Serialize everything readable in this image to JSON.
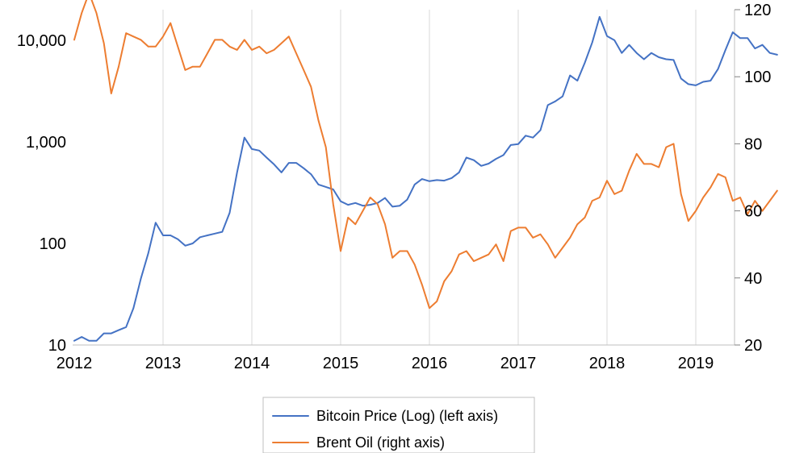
{
  "chart_data": {
    "type": "line",
    "title": "",
    "xlabel": "",
    "grid": "vertical gridlines at each year",
    "legend_position": "bottom",
    "x_ticks": [
      "2012",
      "2013",
      "2014",
      "2015",
      "2016",
      "2017",
      "2018",
      "2019"
    ],
    "x_range": [
      "2012-01",
      "2019-12"
    ],
    "y_left": {
      "scale": "log",
      "range": [
        10,
        20000
      ],
      "ticks": [
        10,
        100,
        1000,
        10000
      ],
      "tick_labels": [
        "10",
        "100",
        "1,000",
        "10,000"
      ]
    },
    "y_right": {
      "scale": "linear",
      "range": [
        20,
        120
      ],
      "ticks": [
        20,
        40,
        60,
        80,
        100,
        120
      ],
      "tick_labels": [
        "20",
        "40",
        "60",
        "80",
        "100",
        "120"
      ]
    },
    "series": [
      {
        "name": "Bitcoin Price (Log) (left axis)",
        "axis": "left",
        "color": "#4472c4",
        "points": [
          [
            "2012-01",
            11
          ],
          [
            "2012-02",
            12
          ],
          [
            "2012-03",
            11
          ],
          [
            "2012-04",
            11
          ],
          [
            "2012-05",
            13
          ],
          [
            "2012-06",
            13
          ],
          [
            "2012-07",
            14
          ],
          [
            "2012-08",
            15
          ],
          [
            "2012-09",
            23
          ],
          [
            "2012-10",
            45
          ],
          [
            "2012-11",
            80
          ],
          [
            "2012-12",
            160
          ],
          [
            "2013-01",
            120
          ],
          [
            "2013-02",
            120
          ],
          [
            "2013-03",
            110
          ],
          [
            "2013-04",
            95
          ],
          [
            "2013-05",
            100
          ],
          [
            "2013-06",
            115
          ],
          [
            "2013-07",
            120
          ],
          [
            "2013-08",
            125
          ],
          [
            "2013-09",
            130
          ],
          [
            "2013-10",
            200
          ],
          [
            "2013-11",
            500
          ],
          [
            "2013-12",
            1100
          ],
          [
            "2014-01",
            850
          ],
          [
            "2014-02",
            820
          ],
          [
            "2014-03",
            700
          ],
          [
            "2014-04",
            600
          ],
          [
            "2014-05",
            500
          ],
          [
            "2014-06",
            620
          ],
          [
            "2014-07",
            620
          ],
          [
            "2014-08",
            550
          ],
          [
            "2014-09",
            480
          ],
          [
            "2014-10",
            380
          ],
          [
            "2014-11",
            360
          ],
          [
            "2014-12",
            340
          ],
          [
            "2015-01",
            260
          ],
          [
            "2015-02",
            240
          ],
          [
            "2015-03",
            250
          ],
          [
            "2015-04",
            235
          ],
          [
            "2015-05",
            240
          ],
          [
            "2015-06",
            250
          ],
          [
            "2015-07",
            280
          ],
          [
            "2015-08",
            230
          ],
          [
            "2015-09",
            235
          ],
          [
            "2015-10",
            270
          ],
          [
            "2015-11",
            380
          ],
          [
            "2015-12",
            430
          ],
          [
            "2016-01",
            410
          ],
          [
            "2016-02",
            420
          ],
          [
            "2016-03",
            415
          ],
          [
            "2016-04",
            440
          ],
          [
            "2016-05",
            500
          ],
          [
            "2016-06",
            700
          ],
          [
            "2016-07",
            660
          ],
          [
            "2016-08",
            580
          ],
          [
            "2016-09",
            610
          ],
          [
            "2016-10",
            680
          ],
          [
            "2016-11",
            740
          ],
          [
            "2016-12",
            930
          ],
          [
            "2017-01",
            950
          ],
          [
            "2017-02",
            1150
          ],
          [
            "2017-03",
            1100
          ],
          [
            "2017-04",
            1300
          ],
          [
            "2017-05",
            2300
          ],
          [
            "2017-06",
            2500
          ],
          [
            "2017-07",
            2800
          ],
          [
            "2017-08",
            4500
          ],
          [
            "2017-09",
            4000
          ],
          [
            "2017-10",
            6000
          ],
          [
            "2017-11",
            9500
          ],
          [
            "2017-12",
            17000
          ],
          [
            "2018-01",
            11000
          ],
          [
            "2018-02",
            10000
          ],
          [
            "2018-03",
            7500
          ],
          [
            "2018-04",
            9000
          ],
          [
            "2018-05",
            7500
          ],
          [
            "2018-06",
            6500
          ],
          [
            "2018-07",
            7500
          ],
          [
            "2018-08",
            6800
          ],
          [
            "2018-09",
            6500
          ],
          [
            "2018-10",
            6400
          ],
          [
            "2018-11",
            4200
          ],
          [
            "2018-12",
            3700
          ],
          [
            "2019-01",
            3600
          ],
          [
            "2019-02",
            3900
          ],
          [
            "2019-03",
            4000
          ],
          [
            "2019-04",
            5200
          ],
          [
            "2019-05",
            8000
          ],
          [
            "2019-06",
            12000
          ],
          [
            "2019-07",
            10500
          ],
          [
            "2019-08",
            10500
          ],
          [
            "2019-09",
            8300
          ],
          [
            "2019-10",
            9000
          ],
          [
            "2019-11",
            7500
          ],
          [
            "2019-12",
            7200
          ]
        ]
      },
      {
        "name": "Brent Oil (right axis)",
        "axis": "right",
        "color": "#ed7d31",
        "points": [
          [
            "2012-01",
            111
          ],
          [
            "2012-02",
            119
          ],
          [
            "2012-03",
            125
          ],
          [
            "2012-04",
            119
          ],
          [
            "2012-05",
            110
          ],
          [
            "2012-06",
            95
          ],
          [
            "2012-07",
            103
          ],
          [
            "2012-08",
            113
          ],
          [
            "2012-09",
            112
          ],
          [
            "2012-10",
            111
          ],
          [
            "2012-11",
            109
          ],
          [
            "2012-12",
            109
          ],
          [
            "2013-01",
            112
          ],
          [
            "2013-02",
            116
          ],
          [
            "2013-03",
            109
          ],
          [
            "2013-04",
            102
          ],
          [
            "2013-05",
            103
          ],
          [
            "2013-06",
            103
          ],
          [
            "2013-07",
            107
          ],
          [
            "2013-08",
            111
          ],
          [
            "2013-09",
            111
          ],
          [
            "2013-10",
            109
          ],
          [
            "2013-11",
            108
          ],
          [
            "2013-12",
            111
          ],
          [
            "2014-01",
            108
          ],
          [
            "2014-02",
            109
          ],
          [
            "2014-03",
            107
          ],
          [
            "2014-04",
            108
          ],
          [
            "2014-05",
            110
          ],
          [
            "2014-06",
            112
          ],
          [
            "2014-07",
            107
          ],
          [
            "2014-08",
            102
          ],
          [
            "2014-09",
            97
          ],
          [
            "2014-10",
            87
          ],
          [
            "2014-11",
            79
          ],
          [
            "2014-12",
            62
          ],
          [
            "2015-01",
            48
          ],
          [
            "2015-02",
            58
          ],
          [
            "2015-03",
            56
          ],
          [
            "2015-04",
            60
          ],
          [
            "2015-05",
            64
          ],
          [
            "2015-06",
            62
          ],
          [
            "2015-07",
            56
          ],
          [
            "2015-08",
            46
          ],
          [
            "2015-09",
            48
          ],
          [
            "2015-10",
            48
          ],
          [
            "2015-11",
            44
          ],
          [
            "2015-12",
            38
          ],
          [
            "2016-01",
            31
          ],
          [
            "2016-02",
            33
          ],
          [
            "2016-03",
            39
          ],
          [
            "2016-04",
            42
          ],
          [
            "2016-05",
            47
          ],
          [
            "2016-06",
            48
          ],
          [
            "2016-07",
            45
          ],
          [
            "2016-08",
            46
          ],
          [
            "2016-09",
            47
          ],
          [
            "2016-10",
            50
          ],
          [
            "2016-11",
            45
          ],
          [
            "2016-12",
            54
          ],
          [
            "2017-01",
            55
          ],
          [
            "2017-02",
            55
          ],
          [
            "2017-03",
            52
          ],
          [
            "2017-04",
            53
          ],
          [
            "2017-05",
            50
          ],
          [
            "2017-06",
            46
          ],
          [
            "2017-07",
            49
          ],
          [
            "2017-08",
            52
          ],
          [
            "2017-09",
            56
          ],
          [
            "2017-10",
            58
          ],
          [
            "2017-11",
            63
          ],
          [
            "2017-12",
            64
          ],
          [
            "2018-01",
            69
          ],
          [
            "2018-02",
            65
          ],
          [
            "2018-03",
            66
          ],
          [
            "2018-04",
            72
          ],
          [
            "2018-05",
            77
          ],
          [
            "2018-06",
            74
          ],
          [
            "2018-07",
            74
          ],
          [
            "2018-08",
            73
          ],
          [
            "2018-09",
            79
          ],
          [
            "2018-10",
            80
          ],
          [
            "2018-11",
            65
          ],
          [
            "2018-12",
            57
          ],
          [
            "2019-01",
            60
          ],
          [
            "2019-02",
            64
          ],
          [
            "2019-03",
            67
          ],
          [
            "2019-04",
            71
          ],
          [
            "2019-05",
            70
          ],
          [
            "2019-06",
            63
          ],
          [
            "2019-07",
            64
          ],
          [
            "2019-08",
            59
          ],
          [
            "2019-09",
            63
          ],
          [
            "2019-10",
            60
          ],
          [
            "2019-11",
            63
          ],
          [
            "2019-12",
            66
          ]
        ]
      }
    ]
  }
}
